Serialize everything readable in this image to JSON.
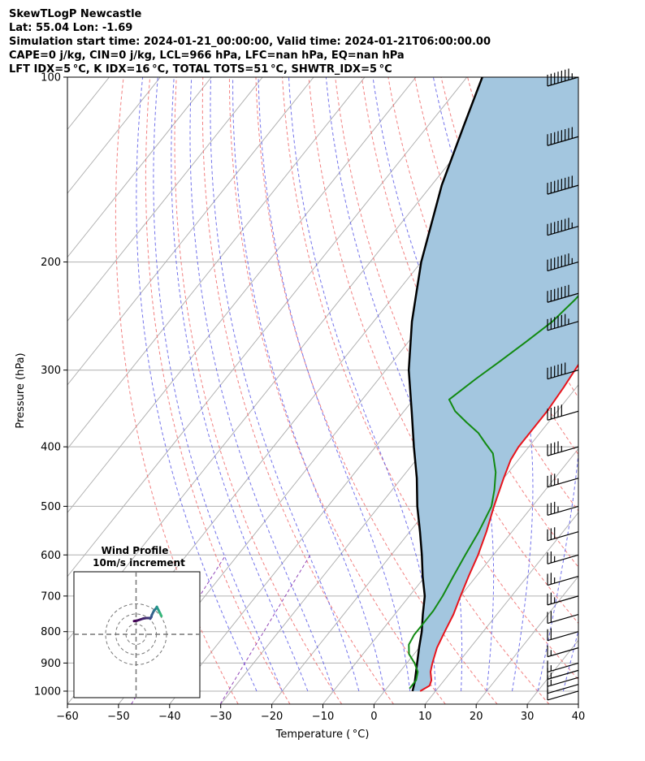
{
  "header": {
    "line1": "SkewTLogP Newcastle",
    "line2": "Lat: 55.04   Lon: -1.69",
    "line3": "Simulation start time: 2024-01-21_00:00:00, Valid time: 2024-01-21T06:00:00.00",
    "line4": "CAPE=0 j/kg, CIN=0 j/kg, LCL=966 hPa, LFC=nan hPa, EQ=nan hPa",
    "line5": "LFT IDX=5 °C, K IDX=16 °C, TOTAL TOTS=51 °C, SHWTR_IDX=5 °C"
  },
  "colors": {
    "temperature": "#e8141c",
    "dewpoint": "#128a12",
    "parcel": "#000000",
    "shading": "#a3c6df",
    "dry_adiabat": "#f06a6a",
    "moist_adiabat": "#5a5ae8",
    "mixing_ratio": "#9146b8",
    "isotherm": "#b0b0b0",
    "grid": "#b0b0b0"
  },
  "chart_data": [
    {
      "type": "line",
      "subtype": "skewT-logP",
      "xlabel": "Temperature ( °C)",
      "ylabel": "Pressure (hPa)",
      "xlim": [
        -60,
        40
      ],
      "ylim": [
        1050,
        100
      ],
      "y_scale": "log",
      "x_ticks": [
        -60,
        -50,
        -40,
        -30,
        -20,
        -10,
        0,
        10,
        20,
        30,
        40
      ],
      "x_tick_labels": [
        "−60",
        "−50",
        "−40",
        "−30",
        "−20",
        "−10",
        "0",
        "10",
        "20",
        "30",
        "40"
      ],
      "y_ticks": [
        1000,
        900,
        800,
        700,
        600,
        500,
        400,
        300,
        200,
        100
      ],
      "y_tick_labels": [
        "1000",
        "900",
        "800",
        "700",
        "600",
        "500",
        "400",
        "300",
        "200",
        "100"
      ],
      "grid": true,
      "series": [
        {
          "key": "temperature",
          "points": [
            [
              1000,
              7
            ],
            [
              980,
              8
            ],
            [
              960,
              7.5
            ],
            [
              930,
              6
            ],
            [
              900,
              5
            ],
            [
              850,
              3.5
            ],
            [
              800,
              2.5
            ],
            [
              750,
              1.5
            ],
            [
              700,
              0
            ],
            [
              650,
              -1.5
            ],
            [
              600,
              -3
            ],
            [
              550,
              -5
            ],
            [
              500,
              -7.5
            ],
            [
              450,
              -10
            ],
            [
              420,
              -11.5
            ],
            [
              400,
              -12
            ],
            [
              370,
              -12
            ],
            [
              350,
              -12
            ],
            [
              320,
              -12.5
            ],
            [
              300,
              -13
            ],
            [
              280,
              -13.5
            ],
            [
              250,
              -14
            ],
            [
              230,
              -13.5
            ],
            [
              210,
              -12.5
            ],
            [
              200,
              -11.5
            ],
            [
              185,
              -8.5
            ],
            [
              170,
              -5
            ],
            [
              150,
              -0.5
            ],
            [
              130,
              4
            ],
            [
              115,
              8
            ],
            [
              100,
              13
            ]
          ]
        },
        {
          "key": "dewpoint",
          "points": [
            [
              990,
              4.5
            ],
            [
              960,
              4.5
            ],
            [
              930,
              3.5
            ],
            [
              900,
              1.5
            ],
            [
              870,
              -1
            ],
            [
              840,
              -2.5
            ],
            [
              810,
              -3
            ],
            [
              790,
              -3
            ],
            [
              760,
              -3
            ],
            [
              740,
              -3
            ],
            [
              700,
              -3.5
            ],
            [
              650,
              -4.5
            ],
            [
              600,
              -5.5
            ],
            [
              550,
              -6.5
            ],
            [
              500,
              -8
            ],
            [
              470,
              -10
            ],
            [
              440,
              -12.5
            ],
            [
              410,
              -16
            ],
            [
              395,
              -19
            ],
            [
              380,
              -22
            ],
            [
              365,
              -26
            ],
            [
              350,
              -30
            ],
            [
              335,
              -33
            ],
            [
              310,
              -31
            ],
            [
              290,
              -29
            ],
            [
              270,
              -27
            ],
            [
              250,
              -25
            ],
            [
              230,
              -24
            ],
            [
              210,
              -23.5
            ],
            [
              200,
              -23
            ],
            [
              180,
              -24
            ],
            [
              165,
              -25
            ],
            [
              160,
              -24
            ],
            [
              145,
              -20
            ],
            [
              130,
              -17
            ],
            [
              115,
              -13
            ],
            [
              100,
              -8
            ]
          ]
        },
        {
          "key": "parcel",
          "points": [
            [
              1000,
              5.5
            ],
            [
              966,
              4.5
            ],
            [
              900,
              2
            ],
            [
              850,
              0
            ],
            [
              800,
              -2
            ],
            [
              750,
              -4.5
            ],
            [
              700,
              -7
            ],
            [
              650,
              -10.5
            ],
            [
              600,
              -14
            ],
            [
              550,
              -18
            ],
            [
              500,
              -22.5
            ],
            [
              450,
              -27
            ],
            [
              400,
              -32.5
            ],
            [
              350,
              -38.5
            ],
            [
              300,
              -45.5
            ],
            [
              250,
              -52.5
            ],
            [
              200,
              -60
            ],
            [
              150,
              -68
            ],
            [
              120,
              -73
            ],
            [
              100,
              -77
            ]
          ]
        }
      ],
      "wind_barbs": {
        "pressures": [
          1000,
          975,
          950,
          925,
          900,
          850,
          800,
          750,
          700,
          650,
          600,
          550,
          500,
          450,
          400,
          350,
          300,
          250,
          225,
          200,
          175,
          150,
          125,
          100
        ],
        "speed_kt": [
          10,
          10,
          15,
          15,
          15,
          15,
          20,
          20,
          25,
          25,
          25,
          30,
          35,
          35,
          45,
          50,
          60,
          65,
          70,
          75,
          75,
          80,
          80,
          75
        ]
      }
    },
    {
      "type": "line",
      "subtype": "hodograph",
      "title": "Wind Profile",
      "subtitle": "10m/s increment",
      "ring_count": 3,
      "ring_step": 10,
      "uv": [
        [
          -2,
          13
        ],
        [
          1,
          13.5
        ],
        [
          4,
          14.5
        ],
        [
          7,
          15.5
        ],
        [
          10,
          16
        ],
        [
          13,
          16
        ],
        [
          14,
          15.5
        ],
        [
          15,
          17
        ],
        [
          15.5,
          19
        ],
        [
          17.5,
          23
        ],
        [
          20,
          26
        ],
        [
          20.5,
          27
        ],
        [
          22,
          24
        ],
        [
          23.5,
          21
        ],
        [
          24,
          20
        ],
        [
          25,
          18
        ]
      ]
    }
  ]
}
